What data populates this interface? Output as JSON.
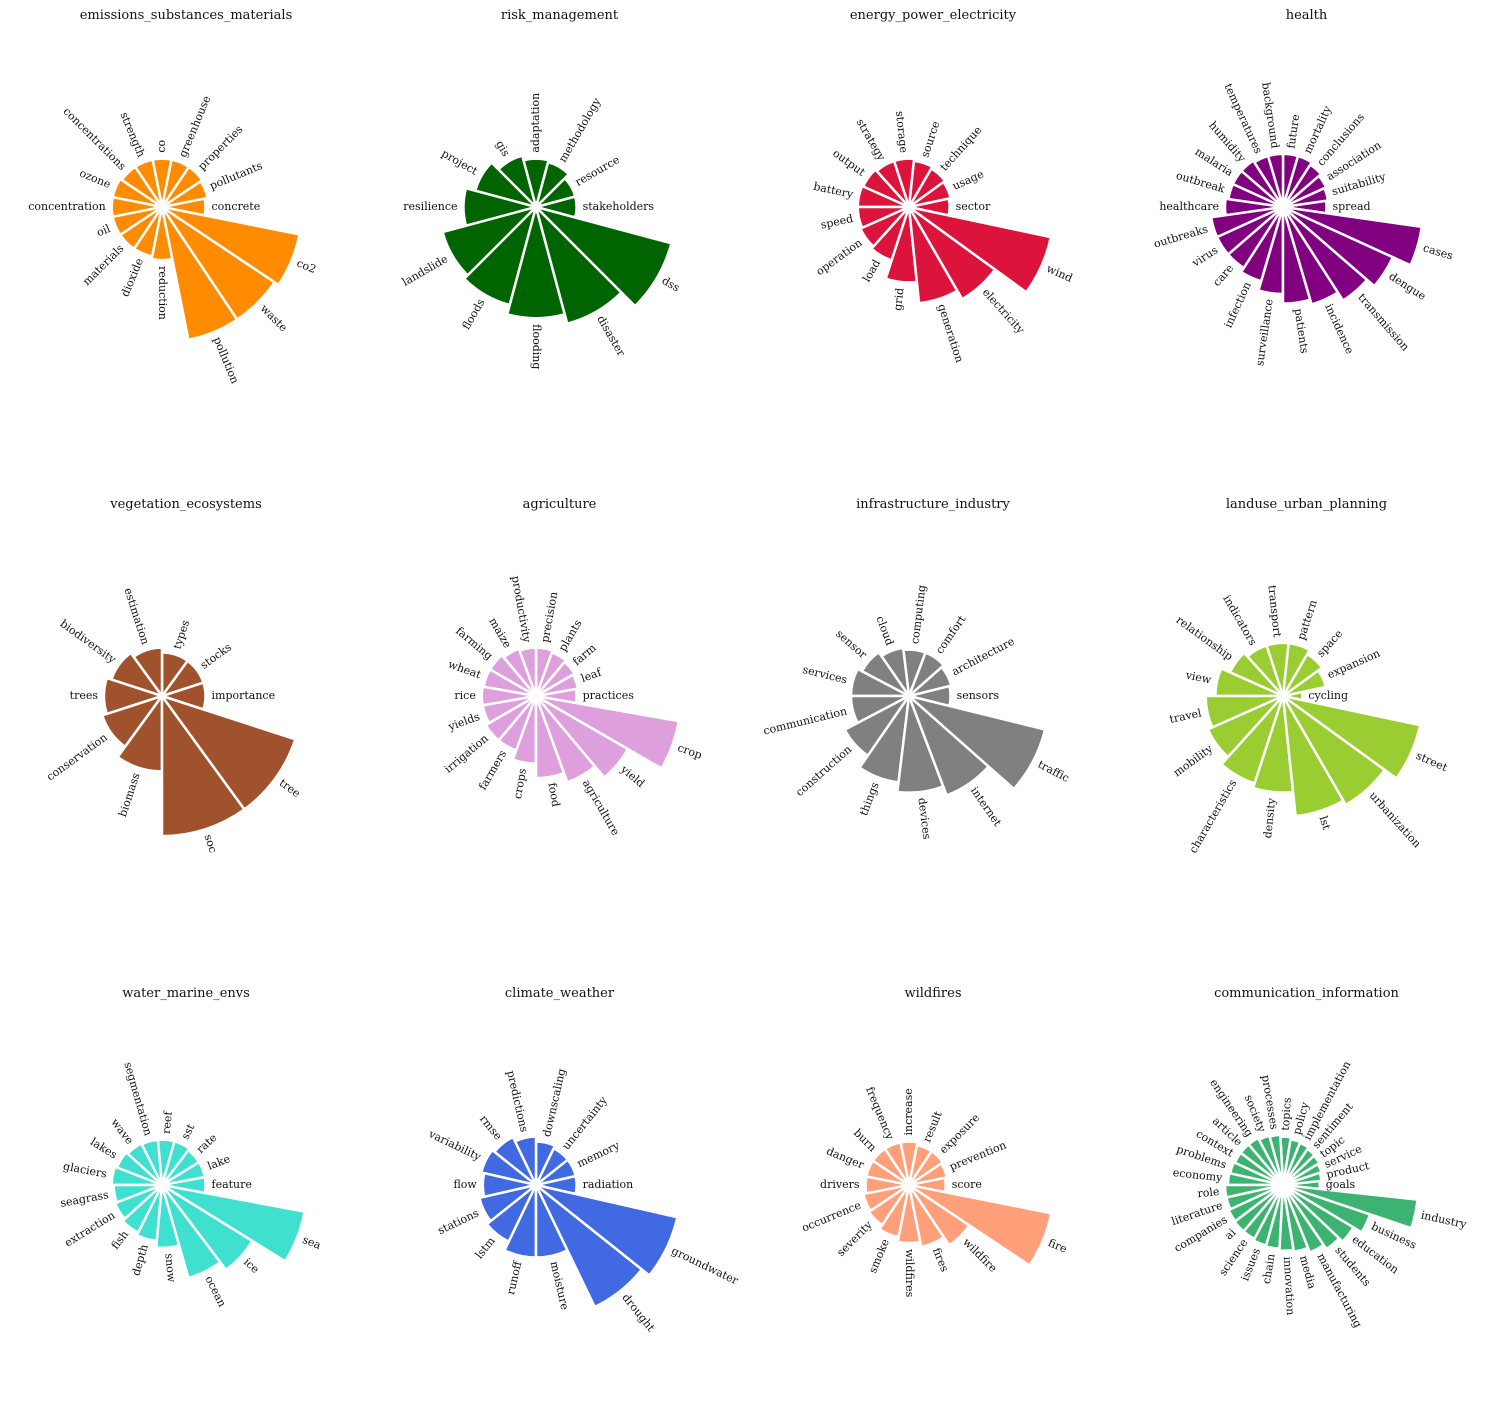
{
  "chart_data": [
    {
      "type": "polar-bar",
      "title": "emissions_substances_materials",
      "color": "#ff8c00",
      "categories": [
        "concrete",
        "pollutants",
        "properties",
        "greenhouse",
        "co",
        "strength",
        "concentrations",
        "ozone",
        "concentration",
        "oil",
        "materials",
        "dioxide",
        "reduction",
        "pollution",
        "waste",
        "co2"
      ],
      "values": [
        45,
        48,
        50,
        50,
        50,
        50,
        50,
        52,
        52,
        52,
        52,
        52,
        55,
        140,
        140,
        145
      ]
    },
    {
      "type": "polar-bar",
      "title": "risk_management",
      "color": "#006400",
      "categories": [
        "stakeholders",
        "resource",
        "methodology",
        "adaptation",
        "gis",
        "project",
        "resilience",
        "landslide",
        "floods",
        "flooding",
        "disaster",
        "dss"
      ],
      "values": [
        42,
        42,
        48,
        50,
        55,
        65,
        75,
        100,
        105,
        115,
        125,
        145
      ]
    },
    {
      "type": "polar-bar",
      "title": "energy_power_electricity",
      "color": "#dc143c",
      "categories": [
        "sector",
        "usage",
        "technique",
        "source",
        "storage",
        "strategy",
        "output",
        "battery",
        "speed",
        "operation",
        "load",
        "grid",
        "generation",
        "electricity",
        "wind"
      ],
      "values": [
        42,
        44,
        46,
        48,
        50,
        50,
        52,
        53,
        53,
        55,
        58,
        78,
        100,
        110,
        150
      ]
    },
    {
      "type": "polar-bar",
      "title": "health",
      "color": "#800080",
      "categories": [
        "spread",
        "suitability",
        "association",
        "conclusions",
        "mortality",
        "future",
        "background",
        "temperatures",
        "humidity",
        "malaria",
        "outbreak",
        "healthcare",
        "outbreaks",
        "virus",
        "care",
        "infection",
        "surveillance",
        "patients",
        "incidence",
        "transmission",
        "dengue",
        "cases"
      ],
      "values": [
        45,
        47,
        49,
        52,
        55,
        55,
        55,
        55,
        57,
        57,
        57,
        60,
        75,
        75,
        75,
        80,
        90,
        100,
        105,
        115,
        125,
        145
      ]
    },
    {
      "type": "polar-bar",
      "title": "vegetation_ecosystems",
      "color": "#a0522d",
      "categories": [
        "importance",
        "stocks",
        "types",
        "estimation",
        "biodiversity",
        "trees",
        "conservation",
        "biomass",
        "soc",
        "tree"
      ],
      "values": [
        45,
        45,
        45,
        50,
        55,
        60,
        65,
        78,
        145,
        145
      ]
    },
    {
      "type": "polar-bar",
      "title": "agriculture",
      "color": "#dda0dd",
      "categories": [
        "practices",
        "leaf",
        "farm",
        "plants",
        "precision",
        "productivity",
        "maize",
        "farming",
        "wheat",
        "rice",
        "yields",
        "irrigation",
        "farmers",
        "crops",
        "food",
        "agriculture",
        "yield",
        "crop"
      ],
      "values": [
        42,
        44,
        46,
        48,
        50,
        50,
        52,
        55,
        55,
        56,
        56,
        60,
        60,
        70,
        85,
        95,
        110,
        150
      ]
    },
    {
      "type": "polar-bar",
      "title": "infrastructure_industry",
      "color": "#808080",
      "categories": [
        "sensors",
        "architecture",
        "comfort",
        "computing",
        "cloud",
        "sensor",
        "services",
        "communication",
        "construction",
        "things",
        "devices",
        "internet",
        "traffic"
      ],
      "values": [
        43,
        45,
        48,
        48,
        50,
        55,
        60,
        60,
        75,
        90,
        100,
        110,
        145
      ]
    },
    {
      "type": "polar-bar",
      "title": "landuse_urban_planning",
      "color": "#9acd32",
      "categories": [
        "cycling",
        "expansion",
        "space",
        "pattern",
        "transport",
        "indicators",
        "relationship",
        "view",
        "travel",
        "mobility",
        "characteristics",
        "density",
        "lst",
        "urbanization",
        "street"
      ],
      "values": [
        20,
        45,
        50,
        55,
        55,
        55,
        60,
        70,
        80,
        85,
        95,
        100,
        125,
        130,
        145
      ]
    },
    {
      "type": "polar-bar",
      "title": "water_marine_envs",
      "color": "#40e0d0",
      "categories": [
        "feature",
        "lake",
        "rate",
        "sst",
        "reef",
        "segmentation",
        "wave",
        "lakes",
        "glaciers",
        "seagrass",
        "extraction",
        "fish",
        "depth",
        "snow",
        "ocean",
        "ice",
        "sea"
      ],
      "values": [
        45,
        45,
        45,
        47,
        47,
        47,
        48,
        50,
        52,
        50,
        52,
        55,
        58,
        65,
        100,
        110,
        150
      ]
    },
    {
      "type": "polar-bar",
      "title": "climate_weather",
      "color": "#4169e1",
      "categories": [
        "radiation",
        "memory",
        "uncertainty",
        "downscaling",
        "predictions",
        "rmse",
        "variability",
        "flow",
        "stations",
        "lstm",
        "runoff",
        "moisture",
        "drought",
        "groundwater"
      ],
      "values": [
        42,
        42,
        42,
        45,
        50,
        55,
        58,
        55,
        60,
        65,
        75,
        75,
        140,
        150
      ]
    },
    {
      "type": "polar-bar",
      "title": "wildfires",
      "color": "#ffa07a",
      "categories": [
        "score",
        "prevention",
        "exposure",
        "result",
        "increase",
        "frequency",
        "burn",
        "danger",
        "drivers",
        "occurrence",
        "severity",
        "smoke",
        "wildfires",
        "fires",
        "wildfire",
        "fire"
      ],
      "values": [
        38,
        40,
        42,
        42,
        45,
        45,
        45,
        45,
        45,
        48,
        50,
        55,
        60,
        65,
        75,
        150
      ]
    },
    {
      "type": "polar-bar",
      "title": "communication_information",
      "color": "#3cb371",
      "categories": [
        "goals",
        "product",
        "service",
        "topic",
        "sentiment",
        "implementation",
        "policy",
        "topics",
        "processes",
        "society",
        "engineering",
        "article",
        "context",
        "problems",
        "economy",
        "role",
        "literature",
        "companies",
        "ai",
        "science",
        "issues",
        "chain",
        "innovation",
        "media",
        "manufacturing",
        "students",
        "education",
        "business",
        "industry"
      ],
      "values": [
        38,
        40,
        42,
        44,
        45,
        47,
        48,
        50,
        52,
        53,
        55,
        55,
        55,
        56,
        57,
        60,
        60,
        62,
        63,
        63,
        65,
        66,
        68,
        70,
        75,
        80,
        85,
        95,
        140
      ]
    }
  ]
}
